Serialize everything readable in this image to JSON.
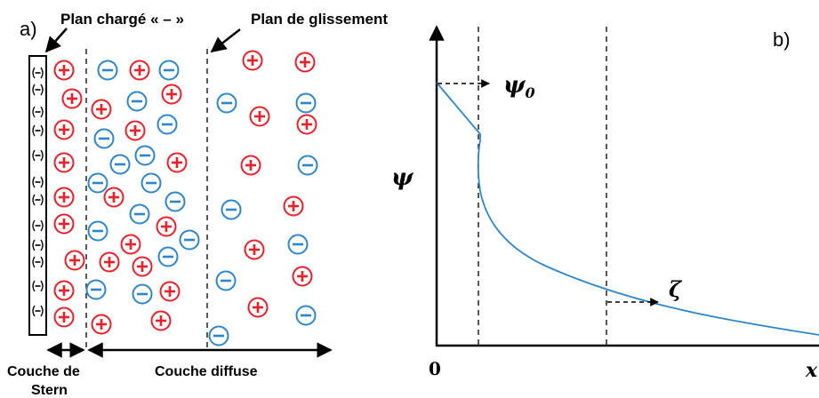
{
  "panel_a": {
    "label": "a)",
    "charged_plane_label": "Plan chargé « – »",
    "slip_plane_label": "Plan de glissement",
    "stern_label_line1": "Couche de",
    "stern_label_line2": "Stern",
    "diffuse_label": "Couche diffuse",
    "positive_symbol": "+",
    "negative_symbol": "−",
    "colors": {
      "positive": "#e8202a",
      "negative": "#2e86c8",
      "line": "#000000"
    }
  },
  "panel_b": {
    "label": "b)",
    "y_axis_label": "ψ",
    "origin_label": "0",
    "x_axis_label": "x",
    "psi0_label": "ψ",
    "psi0_subscript": "0",
    "zeta_label": "ζ",
    "curve_color": "#2e86c8"
  }
}
